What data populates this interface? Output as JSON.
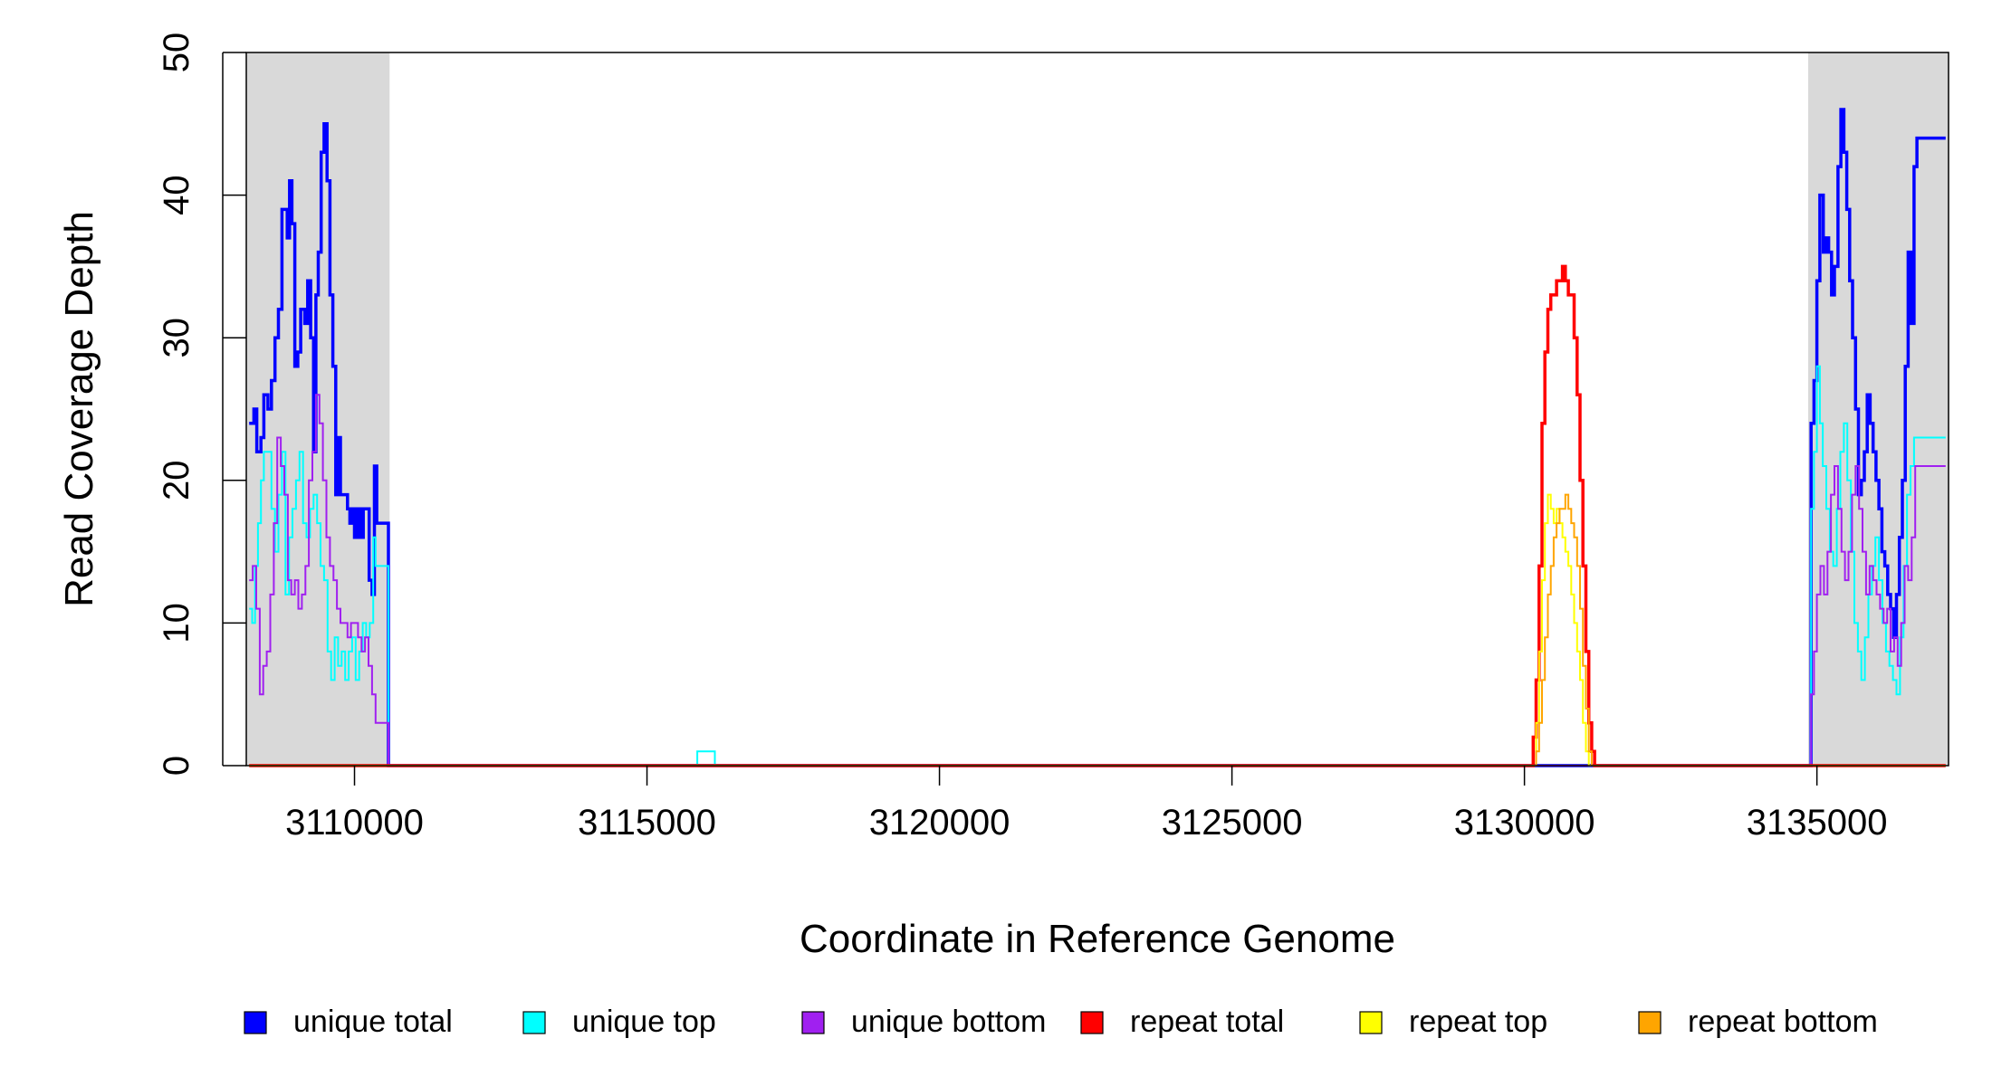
{
  "chart_data": {
    "type": "line",
    "title": "",
    "xlabel": "Coordinate in Reference Genome",
    "ylabel": "Read Coverage Depth",
    "xlim": [
      3108150,
      3137250
    ],
    "ylim": [
      0,
      50
    ],
    "x_ticks": [
      3110000,
      3115000,
      3120000,
      3125000,
      3130000,
      3135000
    ],
    "y_ticks": [
      0,
      10,
      20,
      30,
      40,
      50
    ],
    "grid": false,
    "legend_position": "bottom",
    "shaded_regions": [
      {
        "from": 3108150,
        "to": 3110600,
        "color": "#d9d9d9"
      },
      {
        "from": 3134850,
        "to": 3137250,
        "color": "#d9d9d9"
      }
    ],
    "series": [
      {
        "name": "unique total",
        "color": "#0000ff",
        "points": [
          [
            3108200,
            24
          ],
          [
            3108280,
            25
          ],
          [
            3108330,
            22
          ],
          [
            3108400,
            23
          ],
          [
            3108450,
            26
          ],
          [
            3108520,
            25
          ],
          [
            3108580,
            27
          ],
          [
            3108640,
            30
          ],
          [
            3108700,
            32
          ],
          [
            3108760,
            39
          ],
          [
            3108850,
            37
          ],
          [
            3108890,
            41
          ],
          [
            3108930,
            38
          ],
          [
            3108980,
            28
          ],
          [
            3109030,
            29
          ],
          [
            3109080,
            32
          ],
          [
            3109150,
            31
          ],
          [
            3109200,
            34
          ],
          [
            3109250,
            30
          ],
          [
            3109300,
            22
          ],
          [
            3109340,
            33
          ],
          [
            3109380,
            36
          ],
          [
            3109430,
            43
          ],
          [
            3109480,
            45
          ],
          [
            3109530,
            41
          ],
          [
            3109580,
            33
          ],
          [
            3109630,
            28
          ],
          [
            3109680,
            19
          ],
          [
            3109720,
            23
          ],
          [
            3109760,
            19
          ],
          [
            3109830,
            19
          ],
          [
            3109880,
            18
          ],
          [
            3109920,
            17
          ],
          [
            3109960,
            18
          ],
          [
            3110000,
            16
          ],
          [
            3110050,
            18
          ],
          [
            3110100,
            16
          ],
          [
            3110150,
            18
          ],
          [
            3110200,
            18
          ],
          [
            3110250,
            13
          ],
          [
            3110300,
            12
          ],
          [
            3110340,
            21
          ],
          [
            3110380,
            17
          ],
          [
            3110580,
            0
          ],
          [
            3134850,
            0
          ],
          [
            3134900,
            24
          ],
          [
            3134950,
            27
          ],
          [
            3135000,
            34
          ],
          [
            3135050,
            40
          ],
          [
            3135110,
            36
          ],
          [
            3135160,
            37
          ],
          [
            3135200,
            36
          ],
          [
            3135250,
            33
          ],
          [
            3135300,
            35
          ],
          [
            3135360,
            42
          ],
          [
            3135410,
            46
          ],
          [
            3135460,
            43
          ],
          [
            3135510,
            39
          ],
          [
            3135560,
            34
          ],
          [
            3135610,
            30
          ],
          [
            3135660,
            25
          ],
          [
            3135710,
            19
          ],
          [
            3135760,
            20
          ],
          [
            3135810,
            22
          ],
          [
            3135860,
            26
          ],
          [
            3135910,
            24
          ],
          [
            3135960,
            22
          ],
          [
            3136010,
            20
          ],
          [
            3136060,
            18
          ],
          [
            3136110,
            15
          ],
          [
            3136160,
            14
          ],
          [
            3136210,
            12
          ],
          [
            3136260,
            11
          ],
          [
            3136310,
            9
          ],
          [
            3136360,
            12
          ],
          [
            3136410,
            16
          ],
          [
            3136460,
            20
          ],
          [
            3136510,
            28
          ],
          [
            3136560,
            36
          ],
          [
            3136610,
            31
          ],
          [
            3136660,
            42
          ],
          [
            3136710,
            44
          ],
          [
            3137200,
            44
          ]
        ]
      },
      {
        "name": "unique top",
        "color": "#00ffff",
        "points": [
          [
            3108200,
            11
          ],
          [
            3108250,
            10
          ],
          [
            3108300,
            14
          ],
          [
            3108350,
            17
          ],
          [
            3108400,
            20
          ],
          [
            3108450,
            22
          ],
          [
            3108520,
            22
          ],
          [
            3108580,
            18
          ],
          [
            3108640,
            15
          ],
          [
            3108700,
            19
          ],
          [
            3108760,
            22
          ],
          [
            3108820,
            12
          ],
          [
            3108880,
            16
          ],
          [
            3108940,
            18
          ],
          [
            3109000,
            20
          ],
          [
            3109060,
            22
          ],
          [
            3109120,
            17
          ],
          [
            3109180,
            16
          ],
          [
            3109240,
            18
          ],
          [
            3109300,
            19
          ],
          [
            3109360,
            17
          ],
          [
            3109420,
            14
          ],
          [
            3109480,
            13
          ],
          [
            3109540,
            8
          ],
          [
            3109600,
            6
          ],
          [
            3109660,
            9
          ],
          [
            3109720,
            7
          ],
          [
            3109780,
            8
          ],
          [
            3109840,
            6
          ],
          [
            3109900,
            8
          ],
          [
            3109960,
            9
          ],
          [
            3110020,
            6
          ],
          [
            3110080,
            8
          ],
          [
            3110140,
            10
          ],
          [
            3110200,
            9
          ],
          [
            3110260,
            10
          ],
          [
            3110320,
            16
          ],
          [
            3110360,
            14
          ],
          [
            3110580,
            0
          ],
          [
            3115800,
            0
          ],
          [
            3115860,
            1
          ],
          [
            3116100,
            1
          ],
          [
            3116160,
            0
          ],
          [
            3134850,
            0
          ],
          [
            3134900,
            18
          ],
          [
            3134950,
            22
          ],
          [
            3135000,
            28
          ],
          [
            3135050,
            24
          ],
          [
            3135100,
            21
          ],
          [
            3135160,
            18
          ],
          [
            3135220,
            15
          ],
          [
            3135280,
            14
          ],
          [
            3135340,
            18
          ],
          [
            3135400,
            22
          ],
          [
            3135460,
            24
          ],
          [
            3135520,
            20
          ],
          [
            3135580,
            15
          ],
          [
            3135640,
            10
          ],
          [
            3135700,
            8
          ],
          [
            3135760,
            6
          ],
          [
            3135820,
            9
          ],
          [
            3135880,
            12
          ],
          [
            3135940,
            14
          ],
          [
            3136000,
            16
          ],
          [
            3136060,
            13
          ],
          [
            3136120,
            10
          ],
          [
            3136180,
            8
          ],
          [
            3136240,
            7
          ],
          [
            3136300,
            6
          ],
          [
            3136360,
            5
          ],
          [
            3136420,
            9
          ],
          [
            3136480,
            14
          ],
          [
            3136540,
            19
          ],
          [
            3136600,
            21
          ],
          [
            3136660,
            23
          ],
          [
            3137200,
            23
          ]
        ]
      },
      {
        "name": "unique bottom",
        "color": "#a020f0",
        "points": [
          [
            3108200,
            13
          ],
          [
            3108260,
            14
          ],
          [
            3108320,
            11
          ],
          [
            3108380,
            5
          ],
          [
            3108440,
            7
          ],
          [
            3108500,
            8
          ],
          [
            3108560,
            12
          ],
          [
            3108620,
            17
          ],
          [
            3108680,
            23
          ],
          [
            3108740,
            21
          ],
          [
            3108800,
            19
          ],
          [
            3108860,
            13
          ],
          [
            3108920,
            12
          ],
          [
            3108980,
            13
          ],
          [
            3109040,
            11
          ],
          [
            3109100,
            12
          ],
          [
            3109160,
            14
          ],
          [
            3109220,
            20
          ],
          [
            3109280,
            22
          ],
          [
            3109340,
            26
          ],
          [
            3109400,
            24
          ],
          [
            3109460,
            20
          ],
          [
            3109520,
            16
          ],
          [
            3109580,
            14
          ],
          [
            3109640,
            13
          ],
          [
            3109700,
            11
          ],
          [
            3109760,
            10
          ],
          [
            3109820,
            10
          ],
          [
            3109880,
            9
          ],
          [
            3109940,
            10
          ],
          [
            3110000,
            10
          ],
          [
            3110060,
            9
          ],
          [
            3110120,
            8
          ],
          [
            3110180,
            9
          ],
          [
            3110240,
            7
          ],
          [
            3110300,
            5
          ],
          [
            3110360,
            3
          ],
          [
            3110580,
            0
          ],
          [
            3134850,
            0
          ],
          [
            3134900,
            5
          ],
          [
            3134950,
            8
          ],
          [
            3135000,
            12
          ],
          [
            3135060,
            14
          ],
          [
            3135120,
            12
          ],
          [
            3135180,
            15
          ],
          [
            3135240,
            19
          ],
          [
            3135300,
            21
          ],
          [
            3135360,
            18
          ],
          [
            3135420,
            15
          ],
          [
            3135480,
            13
          ],
          [
            3135540,
            15
          ],
          [
            3135600,
            19
          ],
          [
            3135660,
            21
          ],
          [
            3135720,
            18
          ],
          [
            3135780,
            15
          ],
          [
            3135840,
            12
          ],
          [
            3135900,
            14
          ],
          [
            3135960,
            13
          ],
          [
            3136020,
            12
          ],
          [
            3136080,
            11
          ],
          [
            3136140,
            10
          ],
          [
            3136200,
            11
          ],
          [
            3136260,
            8
          ],
          [
            3136320,
            9
          ],
          [
            3136380,
            7
          ],
          [
            3136440,
            10
          ],
          [
            3136500,
            14
          ],
          [
            3136560,
            13
          ],
          [
            3136620,
            16
          ],
          [
            3136680,
            21
          ],
          [
            3137200,
            21
          ]
        ]
      },
      {
        "name": "repeat total",
        "color": "#ff0000",
        "points": [
          [
            3108200,
            0
          ],
          [
            3130100,
            0
          ],
          [
            3130150,
            2
          ],
          [
            3130200,
            6
          ],
          [
            3130250,
            14
          ],
          [
            3130300,
            24
          ],
          [
            3130350,
            29
          ],
          [
            3130400,
            32
          ],
          [
            3130450,
            33
          ],
          [
            3130500,
            33
          ],
          [
            3130550,
            34
          ],
          [
            3130600,
            34
          ],
          [
            3130650,
            35
          ],
          [
            3130700,
            34
          ],
          [
            3130750,
            33
          ],
          [
            3130800,
            33
          ],
          [
            3130850,
            30
          ],
          [
            3130900,
            26
          ],
          [
            3130950,
            20
          ],
          [
            3131000,
            14
          ],
          [
            3131050,
            8
          ],
          [
            3131100,
            3
          ],
          [
            3131150,
            1
          ],
          [
            3131200,
            0
          ],
          [
            3137200,
            0
          ]
        ]
      },
      {
        "name": "repeat top",
        "color": "#ffff00",
        "points": [
          [
            3108200,
            0
          ],
          [
            3130150,
            0
          ],
          [
            3130200,
            3
          ],
          [
            3130250,
            8
          ],
          [
            3130300,
            13
          ],
          [
            3130350,
            17
          ],
          [
            3130400,
            19
          ],
          [
            3130450,
            18
          ],
          [
            3130500,
            17
          ],
          [
            3130550,
            18
          ],
          [
            3130600,
            17
          ],
          [
            3130650,
            16
          ],
          [
            3130700,
            15
          ],
          [
            3130750,
            14
          ],
          [
            3130800,
            12
          ],
          [
            3130850,
            10
          ],
          [
            3130900,
            8
          ],
          [
            3130950,
            6
          ],
          [
            3131000,
            3
          ],
          [
            3131050,
            1
          ],
          [
            3131100,
            0
          ],
          [
            3137200,
            0
          ]
        ]
      },
      {
        "name": "repeat bottom",
        "color": "#ffa500",
        "points": [
          [
            3108200,
            0
          ],
          [
            3130150,
            0
          ],
          [
            3130200,
            1
          ],
          [
            3130250,
            3
          ],
          [
            3130300,
            6
          ],
          [
            3130350,
            9
          ],
          [
            3130400,
            12
          ],
          [
            3130450,
            14
          ],
          [
            3130500,
            16
          ],
          [
            3130550,
            17
          ],
          [
            3130600,
            18
          ],
          [
            3130650,
            18
          ],
          [
            3130700,
            19
          ],
          [
            3130750,
            18
          ],
          [
            3130800,
            17
          ],
          [
            3130850,
            16
          ],
          [
            3130900,
            14
          ],
          [
            3130950,
            11
          ],
          [
            3131000,
            7
          ],
          [
            3131050,
            4
          ],
          [
            3131100,
            1
          ],
          [
            3131150,
            0
          ],
          [
            3137200,
            0
          ]
        ]
      }
    ]
  }
}
